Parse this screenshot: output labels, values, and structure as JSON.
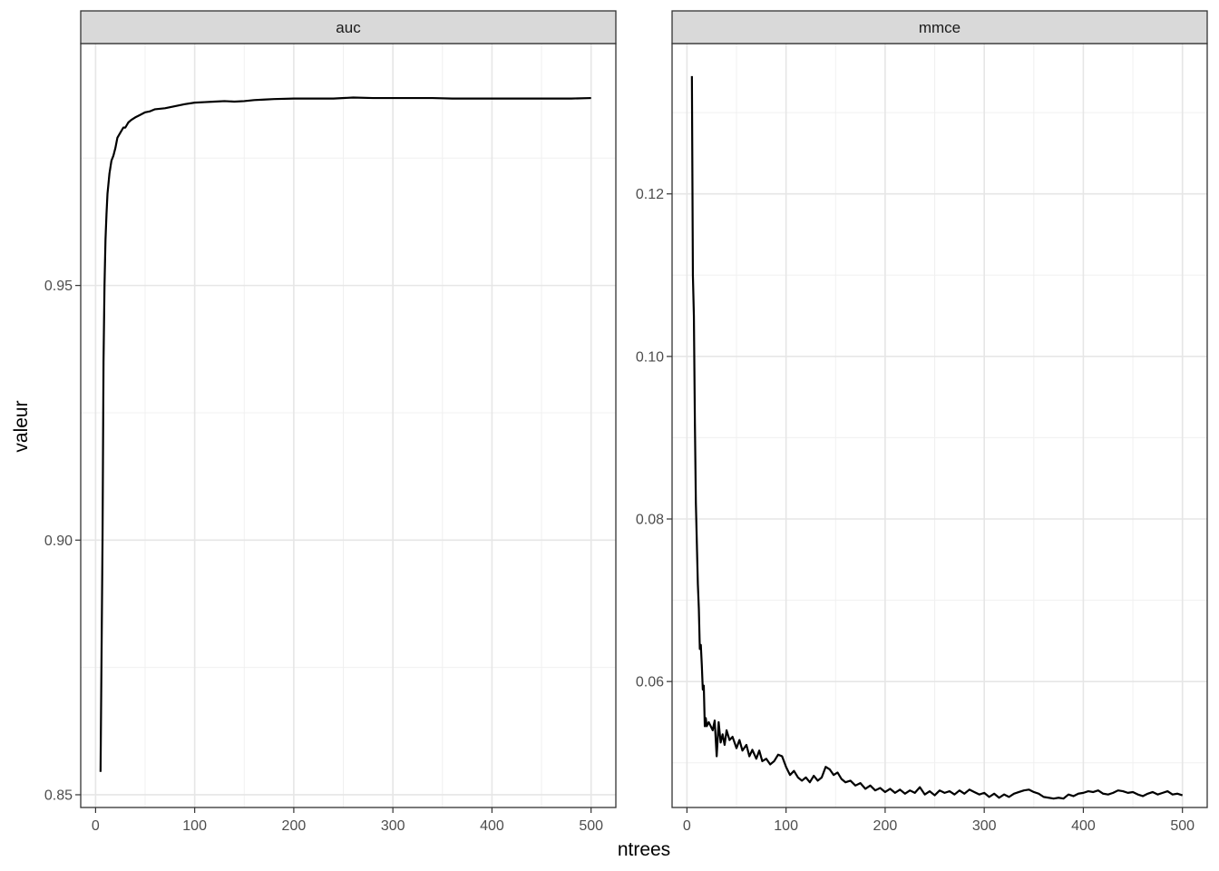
{
  "chart_data": {
    "type": "line",
    "xlabel": "ntrees",
    "ylabel": "valeur",
    "grid": true,
    "legend": "none",
    "line_color": "#000000",
    "strip_fill": "#d9d9d9",
    "panels": [
      {
        "name": "auc",
        "xlim": [
          -15,
          525
        ],
        "ylim": [
          0.8475,
          0.9975
        ],
        "x_ticks": [
          0,
          100,
          200,
          300,
          400,
          500
        ],
        "x_tick_labels": [
          "0",
          "100",
          "200",
          "300",
          "400",
          "500"
        ],
        "y_ticks": [
          0.85,
          0.9,
          0.95
        ],
        "y_tick_labels": [
          "0.85",
          "0.90",
          "0.95"
        ],
        "points": [
          [
            5,
            0.8545
          ],
          [
            7,
            0.9
          ],
          [
            8,
            0.935
          ],
          [
            9,
            0.95
          ],
          [
            10,
            0.959
          ],
          [
            11,
            0.964
          ],
          [
            12,
            0.968
          ],
          [
            14,
            0.972
          ],
          [
            16,
            0.9745
          ],
          [
            18,
            0.9755
          ],
          [
            20,
            0.977
          ],
          [
            22,
            0.979
          ],
          [
            25,
            0.98
          ],
          [
            28,
            0.981
          ],
          [
            30,
            0.981
          ],
          [
            33,
            0.982
          ],
          [
            36,
            0.9825
          ],
          [
            40,
            0.983
          ],
          [
            45,
            0.9835
          ],
          [
            50,
            0.984
          ],
          [
            55,
            0.9842
          ],
          [
            60,
            0.9846
          ],
          [
            70,
            0.9848
          ],
          [
            80,
            0.9852
          ],
          [
            90,
            0.9856
          ],
          [
            100,
            0.9859
          ],
          [
            110,
            0.986
          ],
          [
            120,
            0.9861
          ],
          [
            130,
            0.9862
          ],
          [
            140,
            0.9861
          ],
          [
            150,
            0.9862
          ],
          [
            160,
            0.9864
          ],
          [
            170,
            0.9865
          ],
          [
            180,
            0.9866
          ],
          [
            200,
            0.9867
          ],
          [
            220,
            0.9867
          ],
          [
            240,
            0.9867
          ],
          [
            260,
            0.9869
          ],
          [
            280,
            0.9868
          ],
          [
            300,
            0.9868
          ],
          [
            320,
            0.9868
          ],
          [
            340,
            0.9868
          ],
          [
            360,
            0.9867
          ],
          [
            380,
            0.9867
          ],
          [
            400,
            0.9867
          ],
          [
            420,
            0.9867
          ],
          [
            440,
            0.9867
          ],
          [
            460,
            0.9867
          ],
          [
            480,
            0.9867
          ],
          [
            500,
            0.9868
          ]
        ]
      },
      {
        "name": "mmce",
        "xlim": [
          -15,
          525
        ],
        "ylim": [
          0.0445,
          0.1385
        ],
        "x_ticks": [
          0,
          100,
          200,
          300,
          400,
          500
        ],
        "x_tick_labels": [
          "0",
          "100",
          "200",
          "300",
          "400",
          "500"
        ],
        "y_ticks": [
          0.06,
          0.08,
          0.1,
          0.12
        ],
        "y_tick_labels": [
          "0.06",
          "0.08",
          "0.10",
          "0.12"
        ],
        "points": [
          [
            5,
            0.1345
          ],
          [
            6,
            0.11
          ],
          [
            7,
            0.105
          ],
          [
            8,
            0.092
          ],
          [
            9,
            0.082
          ],
          [
            10,
            0.077
          ],
          [
            11,
            0.072
          ],
          [
            12,
            0.069
          ],
          [
            13,
            0.064
          ],
          [
            14,
            0.0645
          ],
          [
            15,
            0.062
          ],
          [
            16,
            0.059
          ],
          [
            17,
            0.0595
          ],
          [
            18,
            0.0545
          ],
          [
            19,
            0.0555
          ],
          [
            20,
            0.0545
          ],
          [
            22,
            0.055
          ],
          [
            24,
            0.0545
          ],
          [
            26,
            0.054
          ],
          [
            28,
            0.0552
          ],
          [
            30,
            0.0508
          ],
          [
            32,
            0.055
          ],
          [
            34,
            0.0525
          ],
          [
            36,
            0.0535
          ],
          [
            38,
            0.0522
          ],
          [
            40,
            0.054
          ],
          [
            43,
            0.0528
          ],
          [
            46,
            0.0532
          ],
          [
            50,
            0.0518
          ],
          [
            53,
            0.0528
          ],
          [
            56,
            0.0515
          ],
          [
            60,
            0.0522
          ],
          [
            63,
            0.0508
          ],
          [
            66,
            0.0516
          ],
          [
            70,
            0.0505
          ],
          [
            73,
            0.0515
          ],
          [
            76,
            0.0502
          ],
          [
            80,
            0.0505
          ],
          [
            84,
            0.0498
          ],
          [
            88,
            0.0502
          ],
          [
            92,
            0.051
          ],
          [
            96,
            0.0508
          ],
          [
            100,
            0.0495
          ],
          [
            104,
            0.0485
          ],
          [
            108,
            0.049
          ],
          [
            112,
            0.0482
          ],
          [
            116,
            0.0478
          ],
          [
            120,
            0.0482
          ],
          [
            124,
            0.0476
          ],
          [
            128,
            0.0484
          ],
          [
            132,
            0.0478
          ],
          [
            136,
            0.0482
          ],
          [
            140,
            0.0495
          ],
          [
            144,
            0.0492
          ],
          [
            148,
            0.0485
          ],
          [
            152,
            0.0488
          ],
          [
            156,
            0.048
          ],
          [
            160,
            0.0476
          ],
          [
            165,
            0.0478
          ],
          [
            170,
            0.0472
          ],
          [
            175,
            0.0475
          ],
          [
            180,
            0.0468
          ],
          [
            185,
            0.0472
          ],
          [
            190,
            0.0466
          ],
          [
            195,
            0.0469
          ],
          [
            200,
            0.0464
          ],
          [
            205,
            0.0468
          ],
          [
            210,
            0.0463
          ],
          [
            215,
            0.0467
          ],
          [
            220,
            0.0462
          ],
          [
            225,
            0.0466
          ],
          [
            230,
            0.0463
          ],
          [
            235,
            0.047
          ],
          [
            240,
            0.0461
          ],
          [
            245,
            0.0465
          ],
          [
            250,
            0.046
          ],
          [
            255,
            0.0466
          ],
          [
            260,
            0.0463
          ],
          [
            265,
            0.0465
          ],
          [
            270,
            0.0461
          ],
          [
            275,
            0.0466
          ],
          [
            280,
            0.0462
          ],
          [
            285,
            0.0467
          ],
          [
            290,
            0.0464
          ],
          [
            295,
            0.0461
          ],
          [
            300,
            0.0463
          ],
          [
            305,
            0.0458
          ],
          [
            310,
            0.0462
          ],
          [
            315,
            0.0457
          ],
          [
            320,
            0.0461
          ],
          [
            325,
            0.0458
          ],
          [
            330,
            0.0462
          ],
          [
            335,
            0.0464
          ],
          [
            340,
            0.0466
          ],
          [
            345,
            0.0467
          ],
          [
            350,
            0.0464
          ],
          [
            355,
            0.0462
          ],
          [
            360,
            0.0458
          ],
          [
            365,
            0.0457
          ],
          [
            370,
            0.0456
          ],
          [
            375,
            0.0457
          ],
          [
            380,
            0.0456
          ],
          [
            385,
            0.0461
          ],
          [
            390,
            0.0459
          ],
          [
            395,
            0.0462
          ],
          [
            400,
            0.0463
          ],
          [
            405,
            0.0465
          ],
          [
            410,
            0.0464
          ],
          [
            415,
            0.0466
          ],
          [
            420,
            0.0462
          ],
          [
            425,
            0.0461
          ],
          [
            430,
            0.0463
          ],
          [
            435,
            0.0466
          ],
          [
            440,
            0.0465
          ],
          [
            445,
            0.0463
          ],
          [
            450,
            0.0464
          ],
          [
            455,
            0.0461
          ],
          [
            460,
            0.0459
          ],
          [
            465,
            0.0462
          ],
          [
            470,
            0.0464
          ],
          [
            475,
            0.0461
          ],
          [
            480,
            0.0463
          ],
          [
            485,
            0.0465
          ],
          [
            490,
            0.0461
          ],
          [
            495,
            0.0462
          ],
          [
            500,
            0.046
          ]
        ]
      }
    ]
  }
}
